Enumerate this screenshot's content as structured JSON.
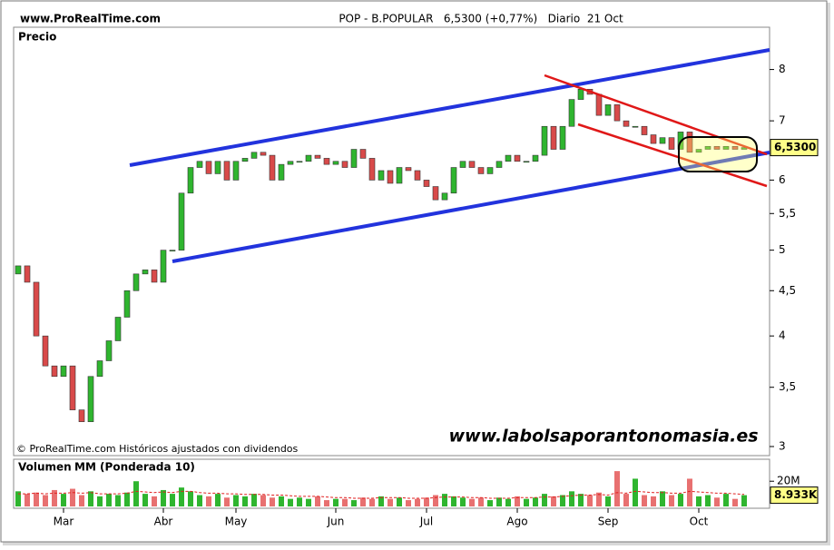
{
  "header": {
    "site": "www.ProRealTime.com",
    "title": "POP - B.POPULAR   6,5300 (+0,77%)   Diario  21 Oct"
  },
  "chart_data": [
    {
      "type": "candlestick",
      "title": "Precio",
      "note": "© ProRealTime.com Históricos ajustados con dividendos",
      "watermark": "www.labolsaporantonomasia.es",
      "categories": [
        null,
        null,
        null,
        null,
        null,
        "Mar",
        null,
        null,
        null,
        null,
        null,
        null,
        null,
        null,
        null,
        null,
        "Abr",
        null,
        null,
        null,
        null,
        null,
        null,
        null,
        "May",
        null,
        null,
        null,
        null,
        null,
        null,
        null,
        null,
        null,
        null,
        "Jun",
        null,
        null,
        null,
        null,
        null,
        null,
        null,
        null,
        null,
        "Jul",
        null,
        null,
        null,
        null,
        null,
        null,
        null,
        null,
        null,
        "Ago",
        null,
        null,
        null,
        null,
        null,
        null,
        null,
        null,
        null,
        "Sep",
        null,
        null,
        null,
        null,
        null,
        null,
        null,
        null,
        null,
        "Oct",
        null,
        null,
        null,
        null,
        null
      ],
      "open": [
        4.7,
        4.8,
        4.6,
        4.0,
        3.7,
        3.6,
        3.7,
        3.3,
        3.2,
        3.6,
        3.75,
        3.95,
        4.2,
        4.5,
        4.7,
        4.75,
        4.6,
        5.0,
        5.0,
        5.8,
        6.2,
        6.3,
        6.1,
        6.3,
        6.0,
        6.3,
        6.35,
        6.45,
        6.4,
        6.0,
        6.25,
        6.3,
        6.3,
        6.4,
        6.35,
        6.25,
        6.3,
        6.2,
        6.5,
        6.35,
        6.0,
        6.15,
        5.95,
        6.2,
        6.15,
        6.0,
        5.9,
        5.7,
        5.8,
        6.2,
        6.3,
        6.2,
        6.1,
        6.2,
        6.3,
        6.4,
        6.3,
        6.3,
        6.4,
        6.9,
        6.5,
        6.9,
        7.4,
        7.6,
        7.5,
        7.1,
        7.3,
        7.0,
        6.9,
        6.9,
        6.75,
        6.6,
        6.7,
        6.5,
        6.8,
        6.45,
        6.5,
        6.55,
        6.5,
        6.55,
        6.5
      ],
      "close": [
        4.8,
        4.6,
        4.0,
        3.7,
        3.6,
        3.7,
        3.3,
        3.2,
        3.6,
        3.75,
        3.95,
        4.2,
        4.5,
        4.7,
        4.75,
        4.6,
        5.0,
        5.0,
        5.8,
        6.2,
        6.3,
        6.1,
        6.3,
        6.0,
        6.3,
        6.35,
        6.45,
        6.4,
        6.0,
        6.25,
        6.3,
        6.3,
        6.4,
        6.35,
        6.25,
        6.3,
        6.2,
        6.5,
        6.35,
        6.0,
        6.15,
        5.95,
        6.2,
        6.15,
        6.0,
        5.9,
        5.7,
        5.8,
        6.2,
        6.3,
        6.2,
        6.1,
        6.2,
        6.3,
        6.4,
        6.3,
        6.3,
        6.4,
        6.9,
        6.5,
        6.9,
        7.4,
        7.6,
        7.5,
        7.1,
        7.3,
        7.0,
        6.9,
        6.9,
        6.75,
        6.6,
        6.7,
        6.5,
        6.8,
        6.45,
        6.5,
        6.55,
        6.5,
        6.55,
        6.5,
        6.53
      ],
      "up_color": "#2fb52f",
      "down_color": "#d84a4a",
      "log_scale": true,
      "ylim": [
        2.93,
        8.93
      ],
      "yticks": [
        3,
        {
          "value": 3.5,
          "label": "3,5"
        },
        4,
        {
          "value": 4.5,
          "label": "4,5"
        },
        5,
        {
          "value": 5.5,
          "label": "5,5"
        },
        6,
        7,
        8
      ],
      "last_label": {
        "value": 6.53,
        "label": "6,5300"
      }
    },
    {
      "type": "bar",
      "series": [
        {
          "name": "Volumen",
          "color": "#2fb52f",
          "values": [
            12,
            10,
            11,
            9,
            13,
            10,
            14,
            9,
            12,
            8,
            10,
            9,
            11,
            20,
            10,
            8,
            13,
            10,
            15,
            12,
            9,
            8,
            10,
            7,
            9,
            8,
            10,
            9,
            7,
            8,
            6,
            7,
            6,
            8,
            5,
            6,
            6,
            5,
            7,
            6,
            8,
            6,
            7,
            5,
            6,
            7,
            9,
            10,
            8,
            7,
            6,
            7,
            5,
            7,
            6,
            8,
            6,
            7,
            10,
            8,
            9,
            12,
            10,
            9,
            11,
            8,
            28,
            10,
            22,
            9,
            8,
            12,
            9,
            10,
            22,
            8,
            9,
            7,
            10,
            6,
            8.933
          ]
        },
        {
          "name": "MM (Ponderada 10)",
          "color": "#e02020",
          "type": "line",
          "values": [
            10,
            10,
            10.5,
            10,
            10.5,
            10.5,
            11,
            10.5,
            11,
            10,
            10,
            10,
            10.5,
            12,
            11.5,
            11,
            11.5,
            11,
            12,
            12,
            11,
            10.5,
            10.5,
            10,
            10,
            9.5,
            9.5,
            9.5,
            9,
            9,
            8.5,
            8,
            8,
            8,
            7.5,
            7,
            7,
            6.5,
            6.5,
            6.5,
            7,
            7,
            7,
            6.5,
            6.5,
            6.5,
            7,
            7.5,
            7.5,
            7.5,
            7,
            7,
            6.5,
            6.5,
            6.5,
            7,
            7,
            7,
            7.5,
            7.5,
            8,
            8.5,
            9,
            9,
            9.5,
            9,
            11,
            10.5,
            12,
            11.5,
            11,
            11,
            10.5,
            10.5,
            12,
            11.5,
            11,
            10.5,
            10.5,
            10,
            9.5
          ]
        }
      ],
      "ylim": [
        0,
        36
      ],
      "yticks": [
        {
          "value": 20,
          "label": "20M"
        }
      ],
      "last_label": {
        "value": 8.933,
        "label": "8.933K"
      }
    }
  ]
}
